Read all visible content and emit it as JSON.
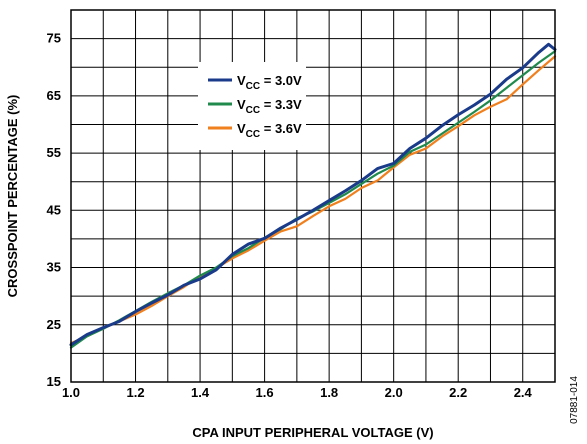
{
  "chart_data": {
    "type": "line",
    "xlabel": "CPA INPUT PERIPHERAL VOLTAGE (V)",
    "ylabel": "CROSSPOINT PERCENTAGE (%)",
    "xlim": [
      1.0,
      2.5
    ],
    "ylim": [
      15,
      80
    ],
    "xticks": [
      "1.0",
      "1.2",
      "1.4",
      "1.6",
      "1.8",
      "2.0",
      "2.2",
      "2.4"
    ],
    "yticks": [
      "15",
      "25",
      "35",
      "45",
      "55",
      "65",
      "75"
    ],
    "grid": true,
    "legend_position": "top-center",
    "series": [
      {
        "name": "V_CC = 3.0V",
        "legend": {
          "prefix": "V",
          "sub": "CC",
          "suffix": " = 3.0V"
        },
        "color": "#1a3a8a",
        "x": [
          1.0,
          1.05,
          1.1,
          1.15,
          1.2,
          1.25,
          1.3,
          1.35,
          1.4,
          1.45,
          1.5,
          1.55,
          1.6,
          1.65,
          1.7,
          1.75,
          1.8,
          1.85,
          1.9,
          1.95,
          2.0,
          2.05,
          2.1,
          2.15,
          2.2,
          2.25,
          2.3,
          2.35,
          2.4,
          2.45,
          2.48,
          2.5
        ],
        "y": [
          21.5,
          23.3,
          24.5,
          25.6,
          27.3,
          28.8,
          30.2,
          31.9,
          33.0,
          34.6,
          37.3,
          39.1,
          40.1,
          41.9,
          43.4,
          45.0,
          46.7,
          48.4,
          50.2,
          52.3,
          53.2,
          55.8,
          57.6,
          59.8,
          61.7,
          63.4,
          65.3,
          67.9,
          69.9,
          72.6,
          74.0,
          73.1
        ]
      },
      {
        "name": "V_CC = 3.3V",
        "legend": {
          "prefix": "V",
          "sub": "CC",
          "suffix": " = 3.3V"
        },
        "color": "#1f8a4c",
        "x": [
          1.0,
          1.05,
          1.1,
          1.15,
          1.2,
          1.25,
          1.3,
          1.35,
          1.4,
          1.45,
          1.5,
          1.55,
          1.6,
          1.65,
          1.7,
          1.75,
          1.8,
          1.85,
          1.9,
          1.95,
          2.0,
          2.05,
          2.1,
          2.15,
          2.2,
          2.25,
          2.3,
          2.35,
          2.4,
          2.45,
          2.5
        ],
        "y": [
          21.0,
          23.0,
          24.3,
          25.8,
          27.4,
          29.0,
          30.5,
          31.9,
          33.6,
          35.0,
          37.0,
          38.4,
          40.2,
          41.7,
          43.6,
          44.8,
          46.3,
          47.8,
          49.6,
          51.4,
          52.8,
          55.2,
          56.5,
          58.4,
          60.3,
          62.2,
          64.2,
          66.4,
          68.6,
          70.8,
          72.8
        ]
      },
      {
        "name": "V_CC = 3.6V",
        "legend": {
          "prefix": "V",
          "sub": "CC",
          "suffix": " = 3.6V"
        },
        "color": "#f07f1e",
        "x": [
          1.0,
          1.05,
          1.1,
          1.15,
          1.2,
          1.25,
          1.3,
          1.35,
          1.4,
          1.45,
          1.5,
          1.55,
          1.6,
          1.65,
          1.7,
          1.75,
          1.8,
          1.85,
          1.9,
          1.95,
          2.0,
          2.05,
          2.1,
          2.15,
          2.2,
          2.25,
          2.3,
          2.35,
          2.4,
          2.45,
          2.5
        ],
        "y": [
          21.8,
          23.0,
          24.4,
          25.6,
          26.8,
          28.3,
          30.0,
          31.6,
          33.5,
          34.9,
          36.6,
          38.0,
          39.7,
          41.3,
          42.2,
          44.0,
          45.7,
          47.0,
          48.9,
          50.2,
          52.5,
          54.7,
          55.8,
          57.9,
          59.7,
          61.6,
          63.1,
          64.4,
          67.0,
          69.5,
          71.9
        ]
      }
    ]
  },
  "figure_id": "07881-014"
}
